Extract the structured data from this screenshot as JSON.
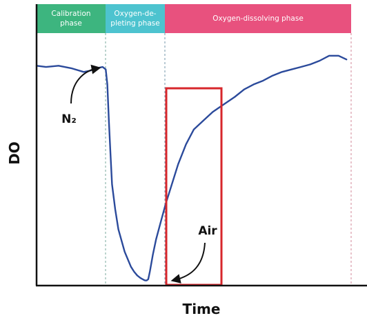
{
  "chart_data": {
    "type": "line",
    "xlabel": "Time",
    "ylabel": "DO",
    "phases": [
      {
        "lines": [
          "Calibration",
          "phase"
        ],
        "color": "#3db57f"
      },
      {
        "lines": [
          "Oxygen-de-",
          "pleting phase"
        ],
        "color": "#4dc3cf"
      },
      {
        "lines": [
          "Oxygen-dissolving phase"
        ],
        "color": "#e8517e"
      }
    ],
    "line_color": "#2b4a9b",
    "highlight_color": "#d7262b",
    "series": [
      {
        "x": [
          0,
          3,
          7,
          11,
          15,
          17,
          19,
          21,
          22,
          22.5,
          23,
          23.5,
          24,
          25,
          26,
          28,
          30,
          31,
          32,
          33,
          34,
          34.5,
          35,
          35.5,
          36,
          37,
          38,
          39.5,
          41,
          43,
          45,
          47.5,
          50,
          53,
          56,
          59.5,
          63,
          66,
          69,
          72,
          75,
          78,
          81,
          84,
          87,
          90,
          93,
          96,
          98.5
        ],
        "y": [
          87.5,
          87,
          87.5,
          86.5,
          85,
          85.5,
          86.5,
          87,
          86,
          80,
          65,
          52,
          40,
          30,
          22,
          13,
          7,
          5,
          3.5,
          2.5,
          1.8,
          1.5,
          1.5,
          2,
          5,
          12,
          18,
          25,
          32,
          40,
          48,
          56,
          62,
          65.5,
          69,
          72,
          75,
          78,
          80,
          81.5,
          83.5,
          85,
          86,
          87,
          88,
          89.5,
          91.5,
          91.5,
          90
        ]
      }
    ],
    "annotations": [
      {
        "text": "N₂"
      },
      {
        "text": "Air"
      }
    ]
  }
}
